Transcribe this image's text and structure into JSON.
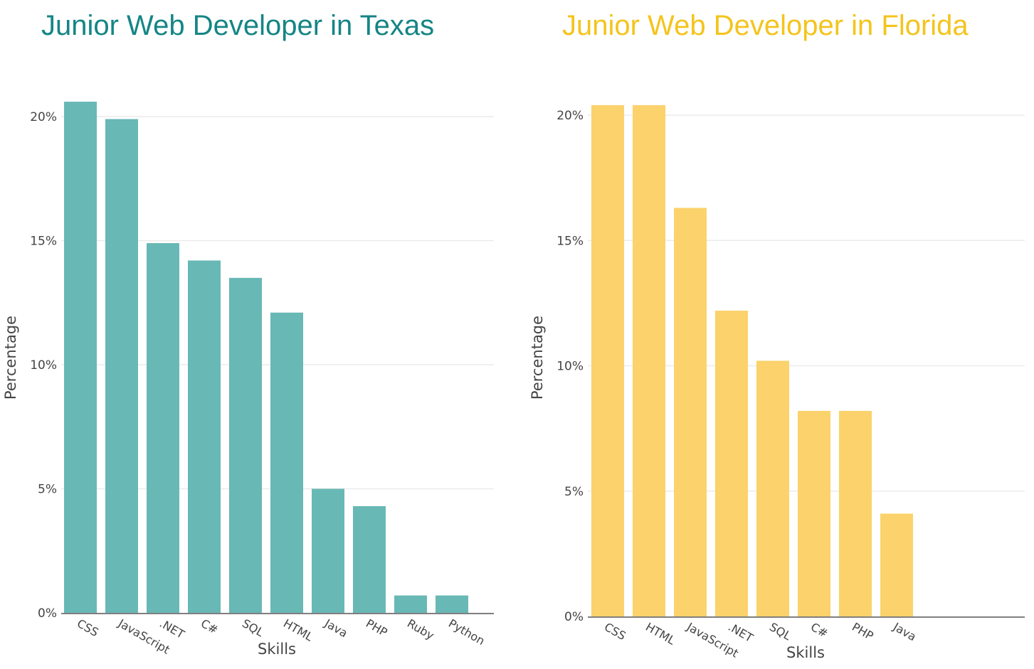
{
  "colors": {
    "texas": "#68b8b5",
    "texas_title": "#158585",
    "florida": "#fbd26b",
    "florida_title": "#f4c41c",
    "grid": "#ebebeb",
    "axis": "#555555"
  },
  "chart_data": [
    {
      "type": "bar",
      "title": "Junior Web Developer in Texas",
      "xlabel": "Skills",
      "ylabel": "Percentage",
      "categories": [
        "CSS",
        "JavaScript",
        ".NET",
        "C#",
        "SQL",
        "HTML",
        "Java",
        "PHP",
        "Ruby",
        "Python"
      ],
      "values": [
        20.6,
        19.9,
        14.9,
        14.2,
        13.5,
        12.1,
        5.0,
        4.3,
        0.7,
        0.7
      ],
      "yticks": [
        "0%",
        "5%",
        "10%",
        "15%",
        "20%"
      ],
      "ylim": [
        0,
        21
      ],
      "grid": true,
      "legend": "none"
    },
    {
      "type": "bar",
      "title": "Junior Web Developer in Florida",
      "xlabel": "Skills",
      "ylabel": "Percentage",
      "categories": [
        "CSS",
        "HTML",
        "JavaScript",
        ".NET",
        "SQL",
        "C#",
        "PHP",
        "Java"
      ],
      "values": [
        20.4,
        20.4,
        16.3,
        12.2,
        10.2,
        8.2,
        8.2,
        4.1
      ],
      "yticks": [
        "0%",
        "5%",
        "10%",
        "15%",
        "20%"
      ],
      "ylim": [
        0,
        21
      ],
      "grid": true,
      "legend": "none"
    }
  ]
}
